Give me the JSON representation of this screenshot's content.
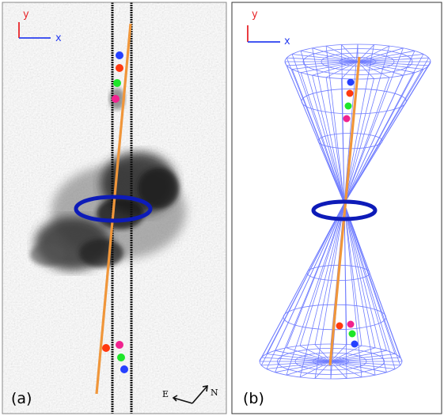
{
  "panel_a": {
    "label": "(a)",
    "axes": {
      "y_label": "y",
      "x_label": "x"
    },
    "compass": {
      "east_label": "E",
      "north_label": "N"
    }
  },
  "panel_b": {
    "label": "(b)",
    "axes": {
      "y_label": "y",
      "x_label": "x"
    }
  },
  "colors": {
    "axis_y": "#e8262a",
    "axis_x": "#2a3ff0",
    "ring": "#0d1bb8",
    "line": "#f0963a",
    "slit": "#111111",
    "wireframe": "#6f7cff",
    "dot_blue": "#2540ff",
    "dot_red": "#ff3a10",
    "dot_green": "#1ee62a",
    "dot_magenta": "#f0228f"
  }
}
